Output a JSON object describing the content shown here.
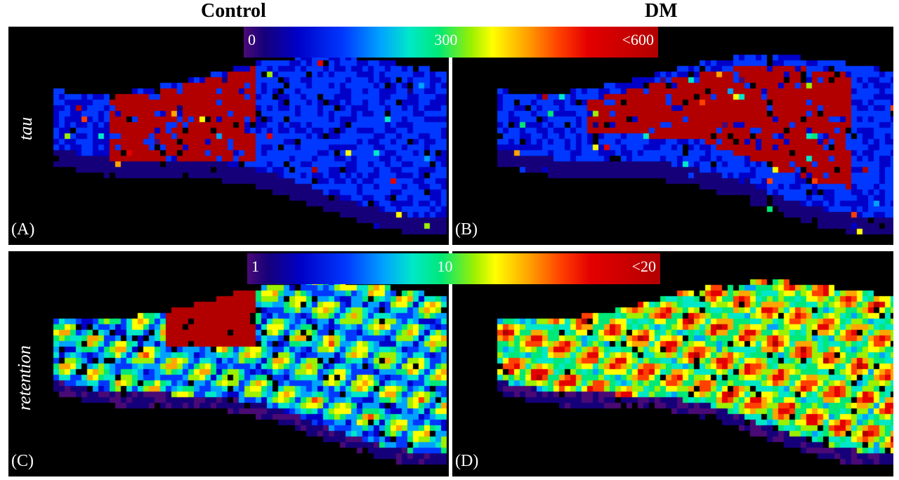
{
  "columns": {
    "control": "Control",
    "dm": "DM"
  },
  "rows": {
    "tau": "tau",
    "retention": "retention"
  },
  "panels": {
    "a": "(A)",
    "b": "(B)",
    "c": "(C)",
    "d": "(D)"
  },
  "colorbar_tau": {
    "min": "0",
    "mid": "300",
    "max": "<600"
  },
  "colorbar_retention": {
    "min": "1",
    "mid": "10",
    "max": "<20"
  },
  "colormap": [
    "#4a0a75",
    "#16007a",
    "#0000c8",
    "#0038ff",
    "#00a2ff",
    "#00e8c8",
    "#00e878",
    "#9cf000",
    "#ffff00",
    "#ffa500",
    "#ff4000",
    "#e40000",
    "#b20000"
  ]
}
